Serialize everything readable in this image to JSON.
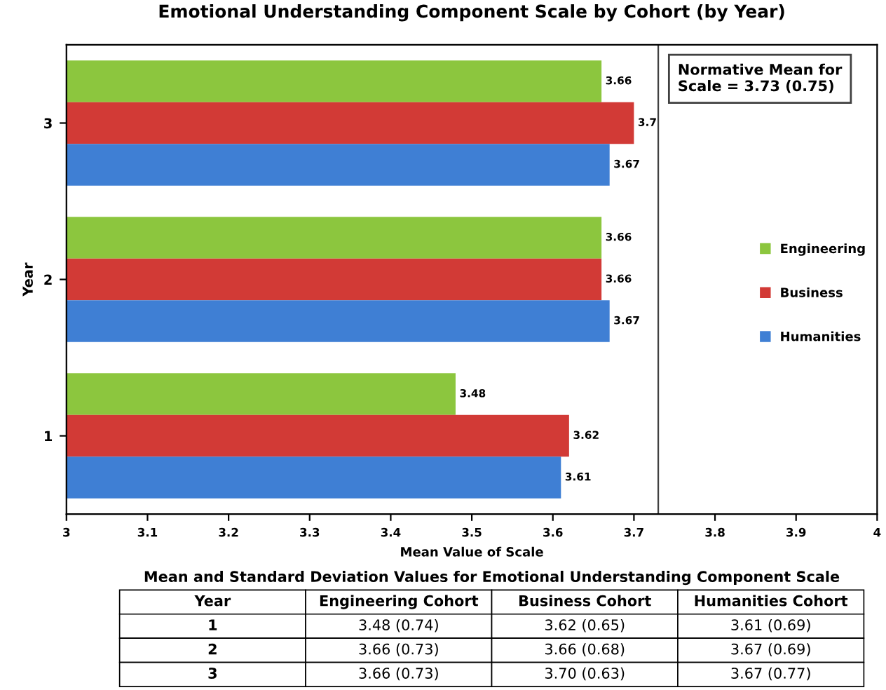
{
  "chart_data": {
    "type": "bar",
    "orientation": "horizontal",
    "title": "Emotional Understanding Component Scale by Cohort (by Year)",
    "xlabel": "Mean Value of Scale",
    "ylabel": "Year",
    "categories": [
      "3",
      "2",
      "1"
    ],
    "series": [
      {
        "name": "Engineering",
        "color": "#8cc63e",
        "values": [
          3.66,
          3.66,
          3.48
        ],
        "value_labels": [
          "3.66",
          "3.66",
          "3.48"
        ]
      },
      {
        "name": "Business",
        "color": "#d23a36",
        "values": [
          3.7,
          3.66,
          3.62
        ],
        "value_labels": [
          "3.7",
          "3.66",
          "3.62"
        ]
      },
      {
        "name": "Humanities",
        "color": "#3f7fd4",
        "values": [
          3.67,
          3.67,
          3.61
        ],
        "value_labels": [
          "3.67",
          "3.67",
          "3.61"
        ]
      }
    ],
    "xlim": [
      3,
      4
    ],
    "xticks": [
      3,
      3.1,
      3.2,
      3.3,
      3.4,
      3.5,
      3.6,
      3.7,
      3.8,
      3.9,
      4
    ],
    "ref_lines": [
      {
        "axis": "x",
        "value": 3.73,
        "label": "Normative Mean for Scale = 3.73 (0.75)",
        "color": "#404040"
      }
    ],
    "legend": "right",
    "grid": false,
    "annotations": [
      "Mean and Standard Deviation Values for Emotional Understanding Component Scale",
      "Year",
      "Engineering Cohort",
      "Business Cohort",
      "Humanities Cohort",
      "1",
      "3.48 (0.74)",
      "3.62 (0.65)",
      "3.61 (0.69)",
      "2",
      "3.66 (0.73)",
      "3.66 (0.68)",
      "3.67 (0.69)",
      "3",
      "3.66 (0.73)",
      "3.70 (0.63)",
      "3.67 (0.77)"
    ]
  }
}
